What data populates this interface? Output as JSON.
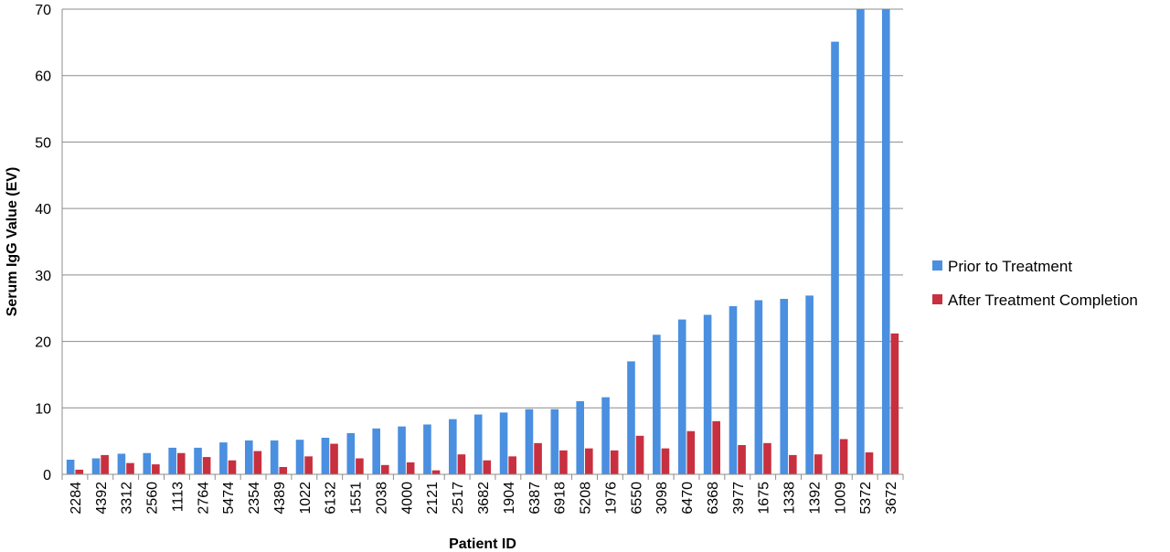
{
  "chart_data": {
    "type": "bar",
    "title": "",
    "xlabel": "Patient ID",
    "ylabel": "Serum IgG Value (EV)",
    "ylim": [
      0,
      70
    ],
    "yticks": [
      0,
      10,
      20,
      30,
      40,
      50,
      60,
      70
    ],
    "grid": true,
    "legend_position": "right",
    "categories": [
      "2284",
      "4392",
      "3312",
      "2560",
      "1113",
      "2764",
      "5474",
      "2354",
      "4389",
      "1022",
      "6132",
      "1551",
      "2038",
      "4000",
      "2121",
      "2517",
      "3682",
      "1904",
      "6387",
      "6918",
      "5208",
      "1976",
      "6550",
      "3098",
      "6470",
      "6368",
      "3977",
      "1675",
      "1338",
      "1392",
      "1009",
      "5372",
      "3672"
    ],
    "series": [
      {
        "name": "Prior to Treatment",
        "color": "#4a8fe0",
        "values": [
          2.2,
          2.4,
          3.1,
          3.2,
          4.0,
          4.0,
          4.8,
          5.1,
          5.1,
          5.2,
          5.5,
          6.2,
          6.9,
          7.2,
          7.5,
          8.3,
          9.0,
          9.3,
          9.8,
          9.8,
          11.0,
          11.6,
          17.0,
          21.0,
          23.3,
          24.0,
          25.3,
          26.2,
          26.4,
          26.9,
          65.1,
          70.0,
          70.0
        ]
      },
      {
        "name": "After Treatment Completion",
        "color": "#c8303f",
        "values": [
          0.7,
          2.9,
          1.7,
          1.5,
          3.2,
          2.6,
          2.1,
          3.5,
          1.1,
          2.7,
          4.6,
          2.4,
          1.4,
          1.8,
          0.6,
          3.0,
          2.1,
          2.7,
          4.7,
          3.6,
          3.9,
          3.6,
          5.8,
          3.9,
          6.5,
          8.0,
          4.4,
          4.7,
          2.9,
          3.0,
          5.3,
          3.3,
          21.2
        ]
      }
    ]
  }
}
